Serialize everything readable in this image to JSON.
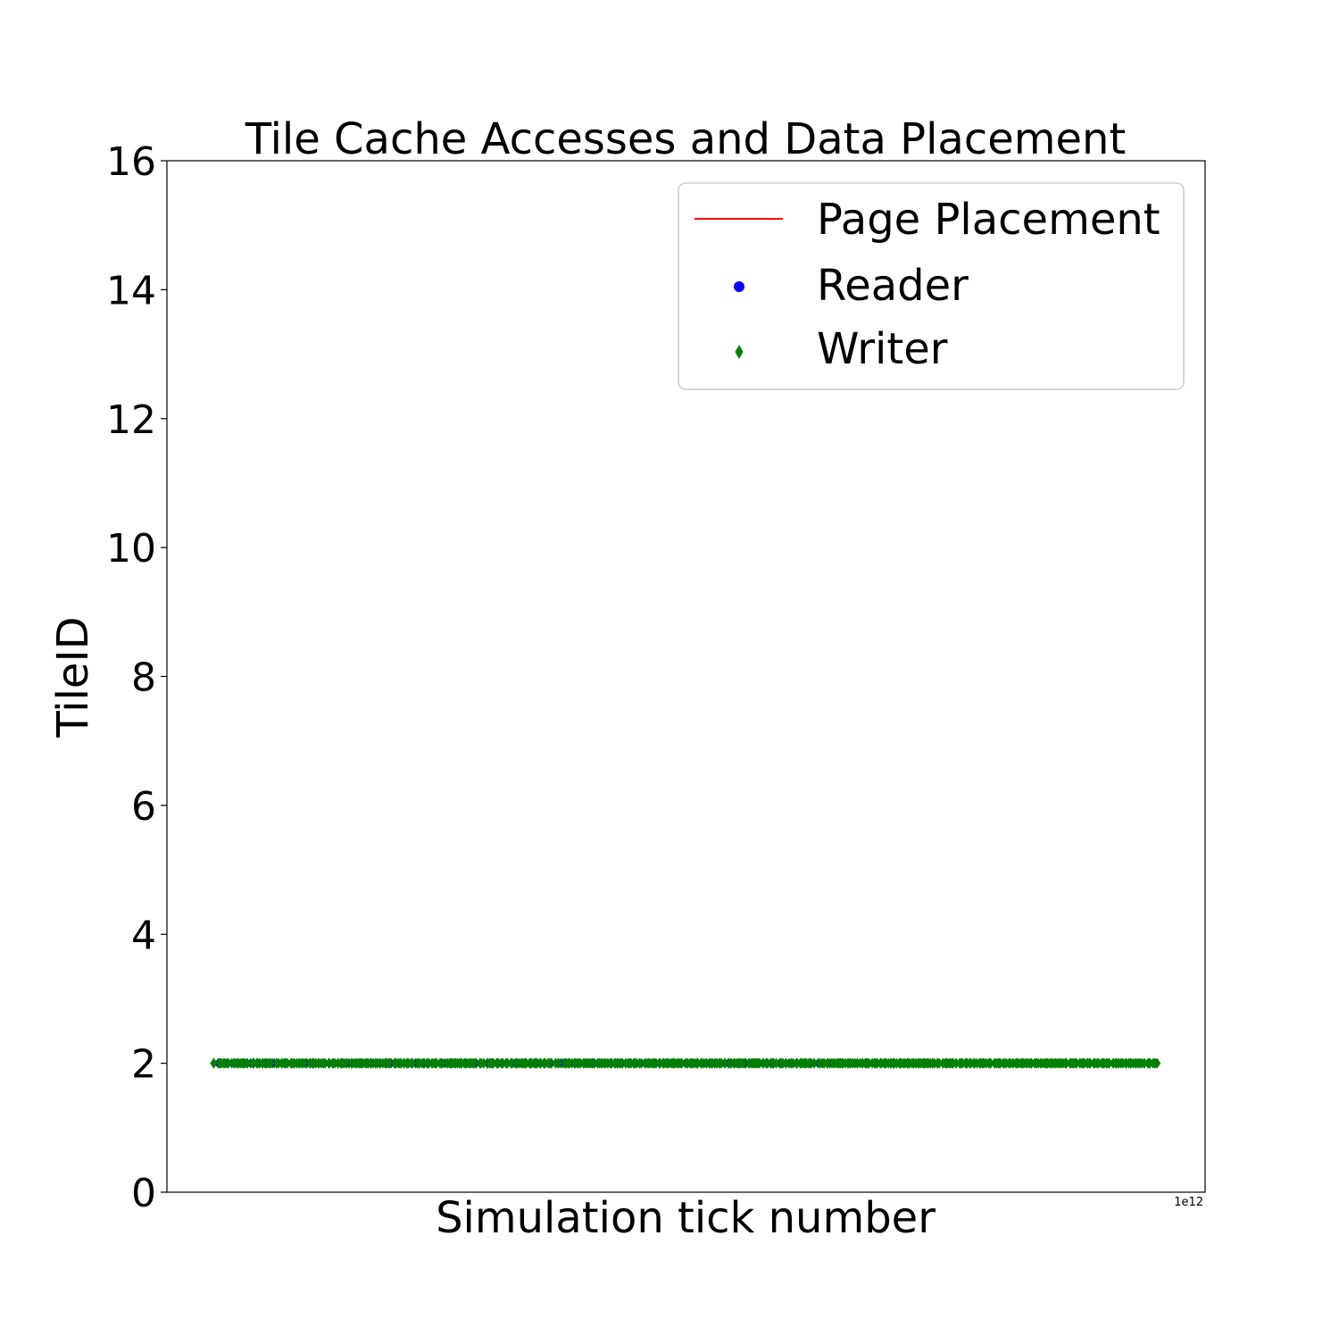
{
  "chart_data": {
    "type": "scatter",
    "title": "Tile Cache Accesses and Data Placement",
    "xlabel": "Simulation tick number",
    "ylabel": "TileID",
    "x_offset_label": "1e12",
    "xlim": [
      0.0,
      1.0
    ],
    "ylim": [
      0,
      16
    ],
    "yticks": [
      0,
      2,
      4,
      6,
      8,
      10,
      12,
      14,
      16
    ],
    "xticks": [],
    "grid": false,
    "legend_position": "top-right",
    "series": [
      {
        "name": "Page Placement",
        "kind": "line",
        "color": "#ff0000",
        "points": [
          [
            0.045,
            2
          ],
          [
            0.64,
            2
          ]
        ]
      },
      {
        "name": "Reader",
        "kind": "scatter",
        "marker": "circle",
        "color": "#0000ff",
        "y": 2,
        "x_range": [
          0.045,
          0.64
        ],
        "count": 220
      },
      {
        "name": "Writer",
        "kind": "scatter",
        "marker": "diamond",
        "color": "#008000",
        "y": 2,
        "x_range": [
          0.045,
          0.955
        ],
        "count": 400
      }
    ]
  }
}
